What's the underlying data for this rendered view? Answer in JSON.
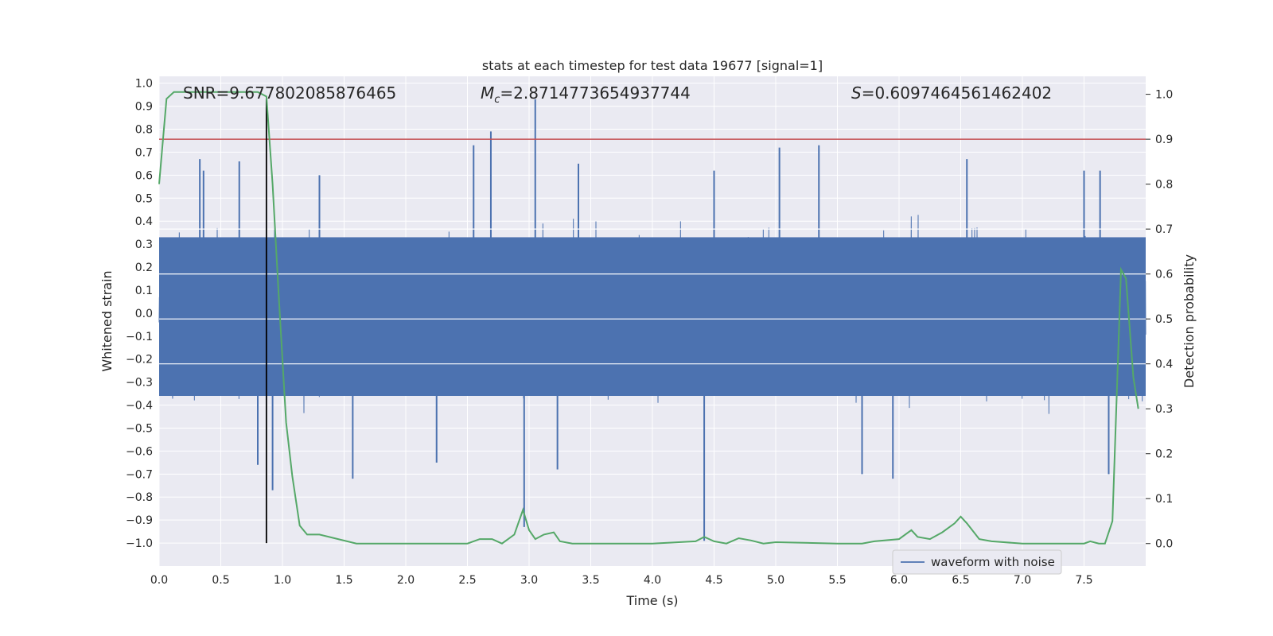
{
  "chart_data": {
    "type": "line",
    "title": "stats at each timestep for test data 19677 [signal=1]",
    "xlabel": "Time (s)",
    "ylabel_left": "Whitened strain",
    "ylabel_right": "Detection probability",
    "xlim": [
      0.0,
      8.0
    ],
    "ylim_left": [
      -1.1,
      1.03
    ],
    "ylim_right": [
      -0.05,
      1.04
    ],
    "x_ticks": [
      0.0,
      0.5,
      1.0,
      1.5,
      2.0,
      2.5,
      3.0,
      3.5,
      4.0,
      4.5,
      5.0,
      5.5,
      6.0,
      6.5,
      7.0,
      7.5
    ],
    "x_tick_labels": [
      "0.0",
      "0.5",
      "1.0",
      "1.5",
      "2.0",
      "2.5",
      "3.0",
      "3.5",
      "4.0",
      "4.5",
      "5.0",
      "5.5",
      "6.0",
      "6.5",
      "7.0",
      "7.5"
    ],
    "y_left_ticks": [
      -1.0,
      -0.9,
      -0.8,
      -0.7,
      -0.6,
      -0.5,
      -0.4,
      -0.3,
      -0.2,
      -0.1,
      0.0,
      0.1,
      0.2,
      0.3,
      0.4,
      0.5,
      0.6,
      0.7,
      0.8,
      0.9,
      1.0
    ],
    "y_left_tick_labels": [
      "−1.0",
      "−0.9",
      "−0.8",
      "−0.7",
      "−0.6",
      "−0.5",
      "−0.4",
      "−0.3",
      "−0.2",
      "−0.1",
      "0.0",
      "0.1",
      "0.2",
      "0.3",
      "0.4",
      "0.5",
      "0.6",
      "0.7",
      "0.8",
      "0.9",
      "1.0"
    ],
    "y_right_ticks": [
      0.0,
      0.1,
      0.2,
      0.3,
      0.4,
      0.5,
      0.6,
      0.7,
      0.8,
      0.9,
      1.0
    ],
    "y_right_tick_labels": [
      "0.0",
      "0.1",
      "0.2",
      "0.3",
      "0.4",
      "0.5",
      "0.6",
      "0.7",
      "0.8",
      "0.9",
      "1.0"
    ],
    "annotations": {
      "snr": "SNR=9.677802085876465",
      "mc_symbol": "M",
      "mc_sub": "c",
      "mc_value": "=2.8714773654937744",
      "s_symbol": "S",
      "s_value": "=0.6097464561462402"
    },
    "legend": {
      "label": "waveform with noise",
      "location": "lower-right"
    },
    "vertical_marker_x": 0.87,
    "threshold_probability": 0.9,
    "waveform": {
      "name": "waveform with noise",
      "color": "#4c72b0",
      "dense_band": [
        -0.36,
        0.33
      ],
      "spikes": [
        {
          "t": 0.33,
          "v": 0.67
        },
        {
          "t": 0.36,
          "v": 0.62
        },
        {
          "t": 0.65,
          "v": 0.66
        },
        {
          "t": 0.8,
          "v": -0.66
        },
        {
          "t": 0.92,
          "v": -0.77
        },
        {
          "t": 1.3,
          "v": 0.6
        },
        {
          "t": 1.57,
          "v": -0.72
        },
        {
          "t": 2.25,
          "v": -0.65
        },
        {
          "t": 2.55,
          "v": 0.73
        },
        {
          "t": 2.69,
          "v": 0.79
        },
        {
          "t": 2.96,
          "v": -0.93
        },
        {
          "t": 3.05,
          "v": 0.93
        },
        {
          "t": 3.23,
          "v": -0.68
        },
        {
          "t": 3.4,
          "v": 0.65
        },
        {
          "t": 4.42,
          "v": -0.99
        },
        {
          "t": 4.5,
          "v": 0.62
        },
        {
          "t": 5.03,
          "v": 0.72
        },
        {
          "t": 5.35,
          "v": 0.73
        },
        {
          "t": 5.7,
          "v": -0.7
        },
        {
          "t": 5.95,
          "v": -0.72
        },
        {
          "t": 6.55,
          "v": 0.67
        },
        {
          "t": 7.5,
          "v": 0.62
        },
        {
          "t": 7.63,
          "v": 0.62
        },
        {
          "t": 7.7,
          "v": -0.7
        }
      ]
    },
    "probability_series": {
      "color": "#55a868",
      "points": [
        [
          0.0,
          0.8
        ],
        [
          0.06,
          0.99
        ],
        [
          0.12,
          1.005
        ],
        [
          0.3,
          1.005
        ],
        [
          0.6,
          1.005
        ],
        [
          0.8,
          1.005
        ],
        [
          0.87,
          0.995
        ],
        [
          0.92,
          0.8
        ],
        [
          0.97,
          0.55
        ],
        [
          1.03,
          0.27
        ],
        [
          1.08,
          0.15
        ],
        [
          1.14,
          0.04
        ],
        [
          1.2,
          0.02
        ],
        [
          1.3,
          0.02
        ],
        [
          1.6,
          0.0
        ],
        [
          2.0,
          0.0
        ],
        [
          2.5,
          0.0
        ],
        [
          2.6,
          0.01
        ],
        [
          2.7,
          0.01
        ],
        [
          2.78,
          0.0
        ],
        [
          2.88,
          0.02
        ],
        [
          2.95,
          0.075
        ],
        [
          3.0,
          0.03
        ],
        [
          3.05,
          0.01
        ],
        [
          3.12,
          0.02
        ],
        [
          3.2,
          0.025
        ],
        [
          3.25,
          0.005
        ],
        [
          3.35,
          0.0
        ],
        [
          4.0,
          0.0
        ],
        [
          4.35,
          0.005
        ],
        [
          4.42,
          0.015
        ],
        [
          4.5,
          0.005
        ],
        [
          4.6,
          0.0
        ],
        [
          4.7,
          0.012
        ],
        [
          4.8,
          0.007
        ],
        [
          4.9,
          0.0
        ],
        [
          5.0,
          0.003
        ],
        [
          5.5,
          0.0
        ],
        [
          5.7,
          0.0
        ],
        [
          5.8,
          0.005
        ],
        [
          6.0,
          0.01
        ],
        [
          6.1,
          0.03
        ],
        [
          6.15,
          0.015
        ],
        [
          6.25,
          0.01
        ],
        [
          6.35,
          0.025
        ],
        [
          6.45,
          0.045
        ],
        [
          6.5,
          0.06
        ],
        [
          6.55,
          0.045
        ],
        [
          6.65,
          0.01
        ],
        [
          6.75,
          0.005
        ],
        [
          7.0,
          0.0
        ],
        [
          7.5,
          0.0
        ],
        [
          7.55,
          0.005
        ],
        [
          7.62,
          0.0
        ],
        [
          7.67,
          0.0
        ],
        [
          7.73,
          0.05
        ],
        [
          7.8,
          0.61
        ],
        [
          7.84,
          0.59
        ],
        [
          7.9,
          0.37
        ],
        [
          7.94,
          0.3
        ]
      ]
    }
  }
}
